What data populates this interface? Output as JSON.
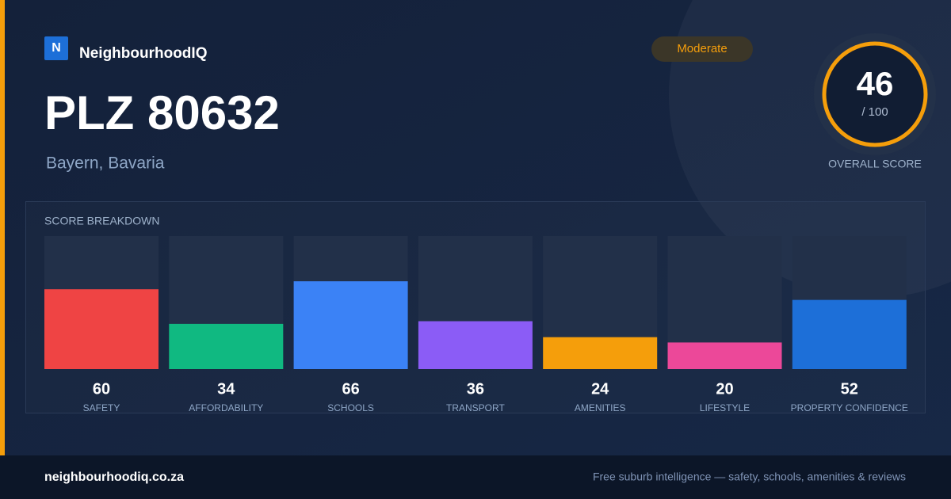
{
  "brand": "NeighbourhoodIQ",
  "logo": "N",
  "title": "PLZ 80632",
  "subtitle": "Bayern, Bavaria",
  "badge": "Moderate",
  "score": {
    "value": "46",
    "out_of": "/ 100",
    "caption": "OVERALL SCORE"
  },
  "breakdown": {
    "title": "SCORE BREAKDOWN",
    "ylim": [
      0,
      100
    ],
    "categories": [
      "SAFETY",
      "AFFORDABILITY",
      "SCHOOLS",
      "TRANSPORT",
      "AMENITIES",
      "LIFESTYLE",
      "PROPERTY CONFIDENCE"
    ],
    "values": [
      60,
      34,
      66,
      36,
      24,
      20,
      52
    ],
    "colors": [
      "#ef4444",
      "#10b981",
      "#3b82f6",
      "#8b5cf6",
      "#f59e0b",
      "#ec4899",
      "#1d6fd8"
    ]
  },
  "footer": {
    "site": "neighbourhoodiq.co.za",
    "tagline": "Free suburb intelligence — safety, schools, amenities & reviews"
  }
}
